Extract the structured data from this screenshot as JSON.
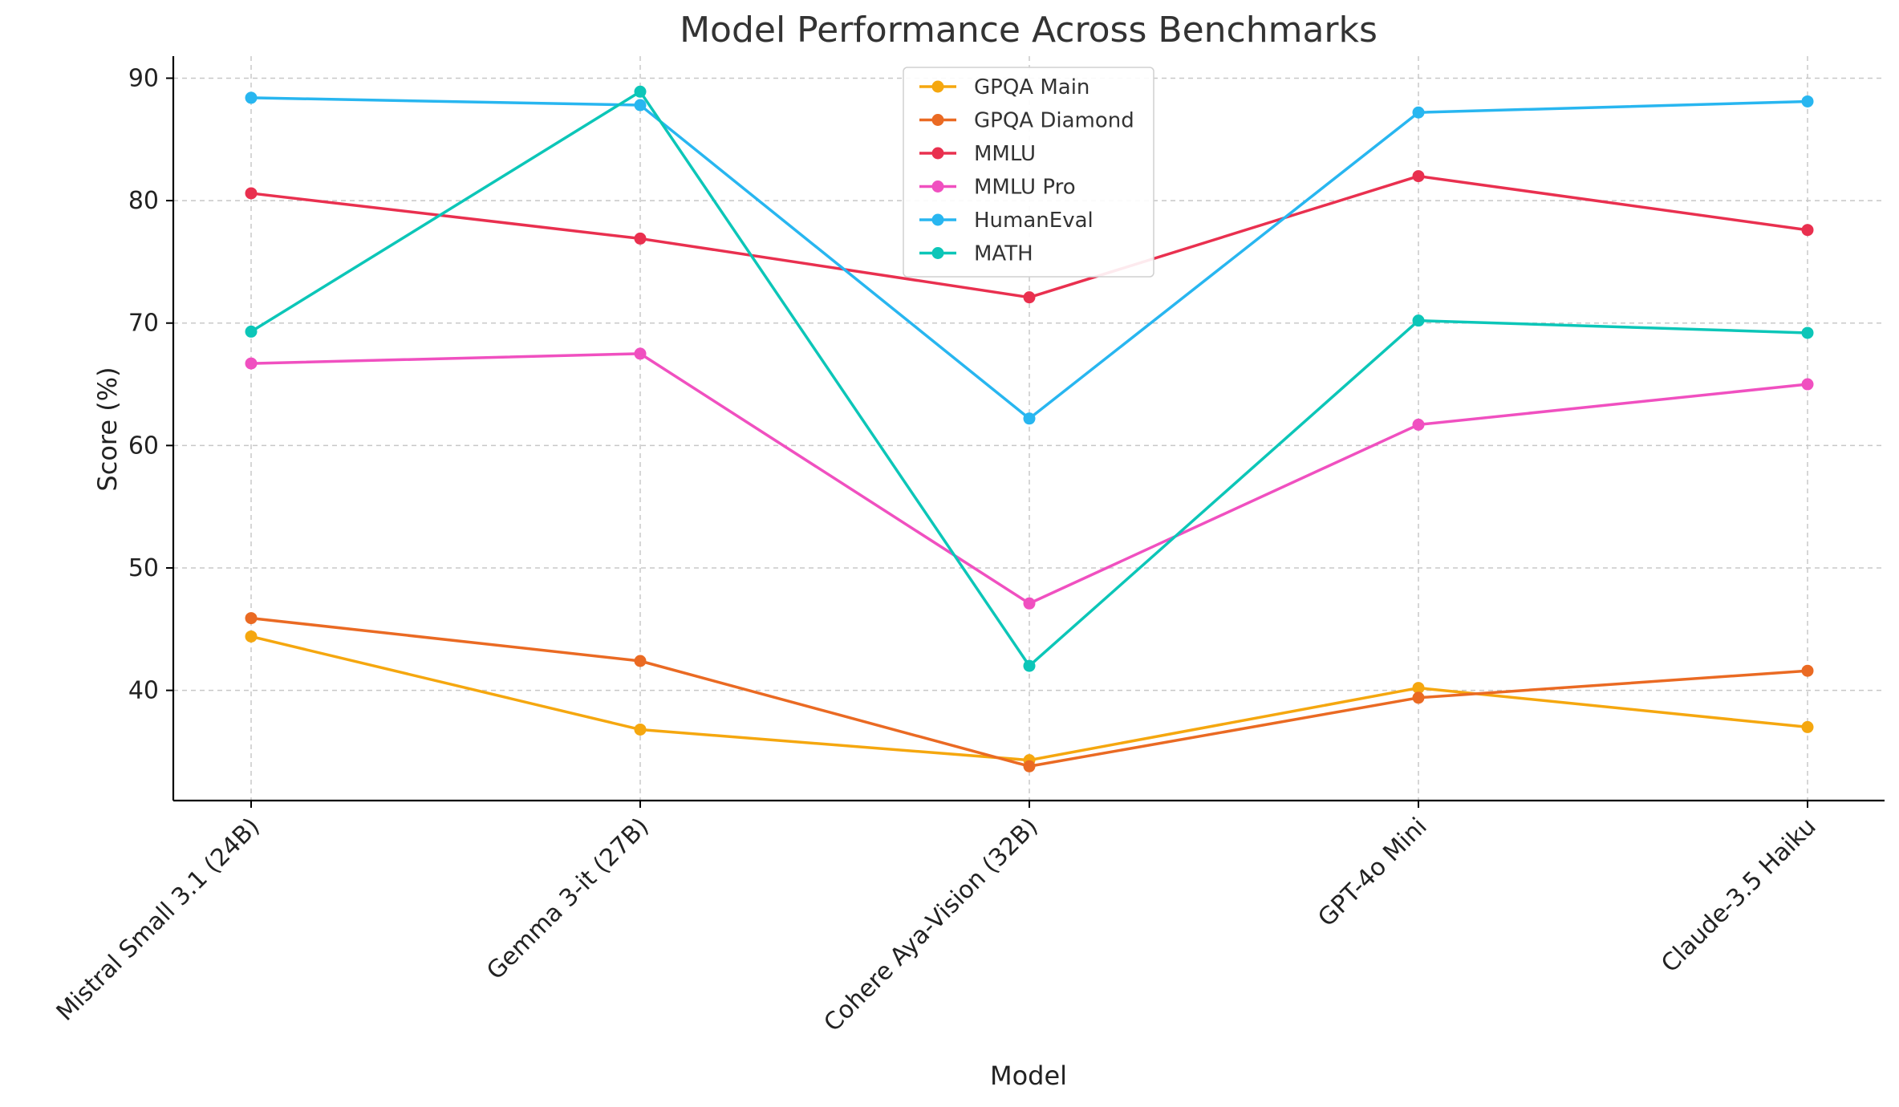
{
  "chart_data": {
    "type": "line",
    "title": "Model Performance Across Benchmarks",
    "xlabel": "Model",
    "ylabel": "Score (%)",
    "categories": [
      "Mistral Small 3.1 (24B)",
      "Gemma 3-it (27B)",
      "Cohere Aya-Vision (32B)",
      "GPT-4o Mini",
      "Claude-3.5 Haiku"
    ],
    "ylim": [
      31,
      91.8
    ],
    "yticks": [
      40,
      50,
      60,
      70,
      80,
      90
    ],
    "grid": true,
    "legend_position": "top-center",
    "series": [
      {
        "name": "GPQA Main",
        "color": "#F5A70F",
        "values": [
          44.4,
          36.8,
          34.3,
          40.2,
          37.0
        ]
      },
      {
        "name": "GPQA Diamond",
        "color": "#EA6A23",
        "values": [
          45.9,
          42.4,
          33.8,
          39.4,
          41.6
        ]
      },
      {
        "name": "MMLU",
        "color": "#E9304F",
        "values": [
          80.6,
          76.9,
          72.1,
          82.0,
          77.6
        ]
      },
      {
        "name": "MMLU Pro",
        "color": "#F050C0",
        "values": [
          66.7,
          67.5,
          47.1,
          61.7,
          65.0
        ]
      },
      {
        "name": "HumanEval",
        "color": "#28B6F0",
        "values": [
          88.4,
          87.8,
          62.2,
          87.2,
          88.1
        ]
      },
      {
        "name": "MATH",
        "color": "#0CC6B8",
        "values": [
          69.3,
          88.9,
          42.0,
          70.2,
          69.2
        ]
      }
    ]
  }
}
